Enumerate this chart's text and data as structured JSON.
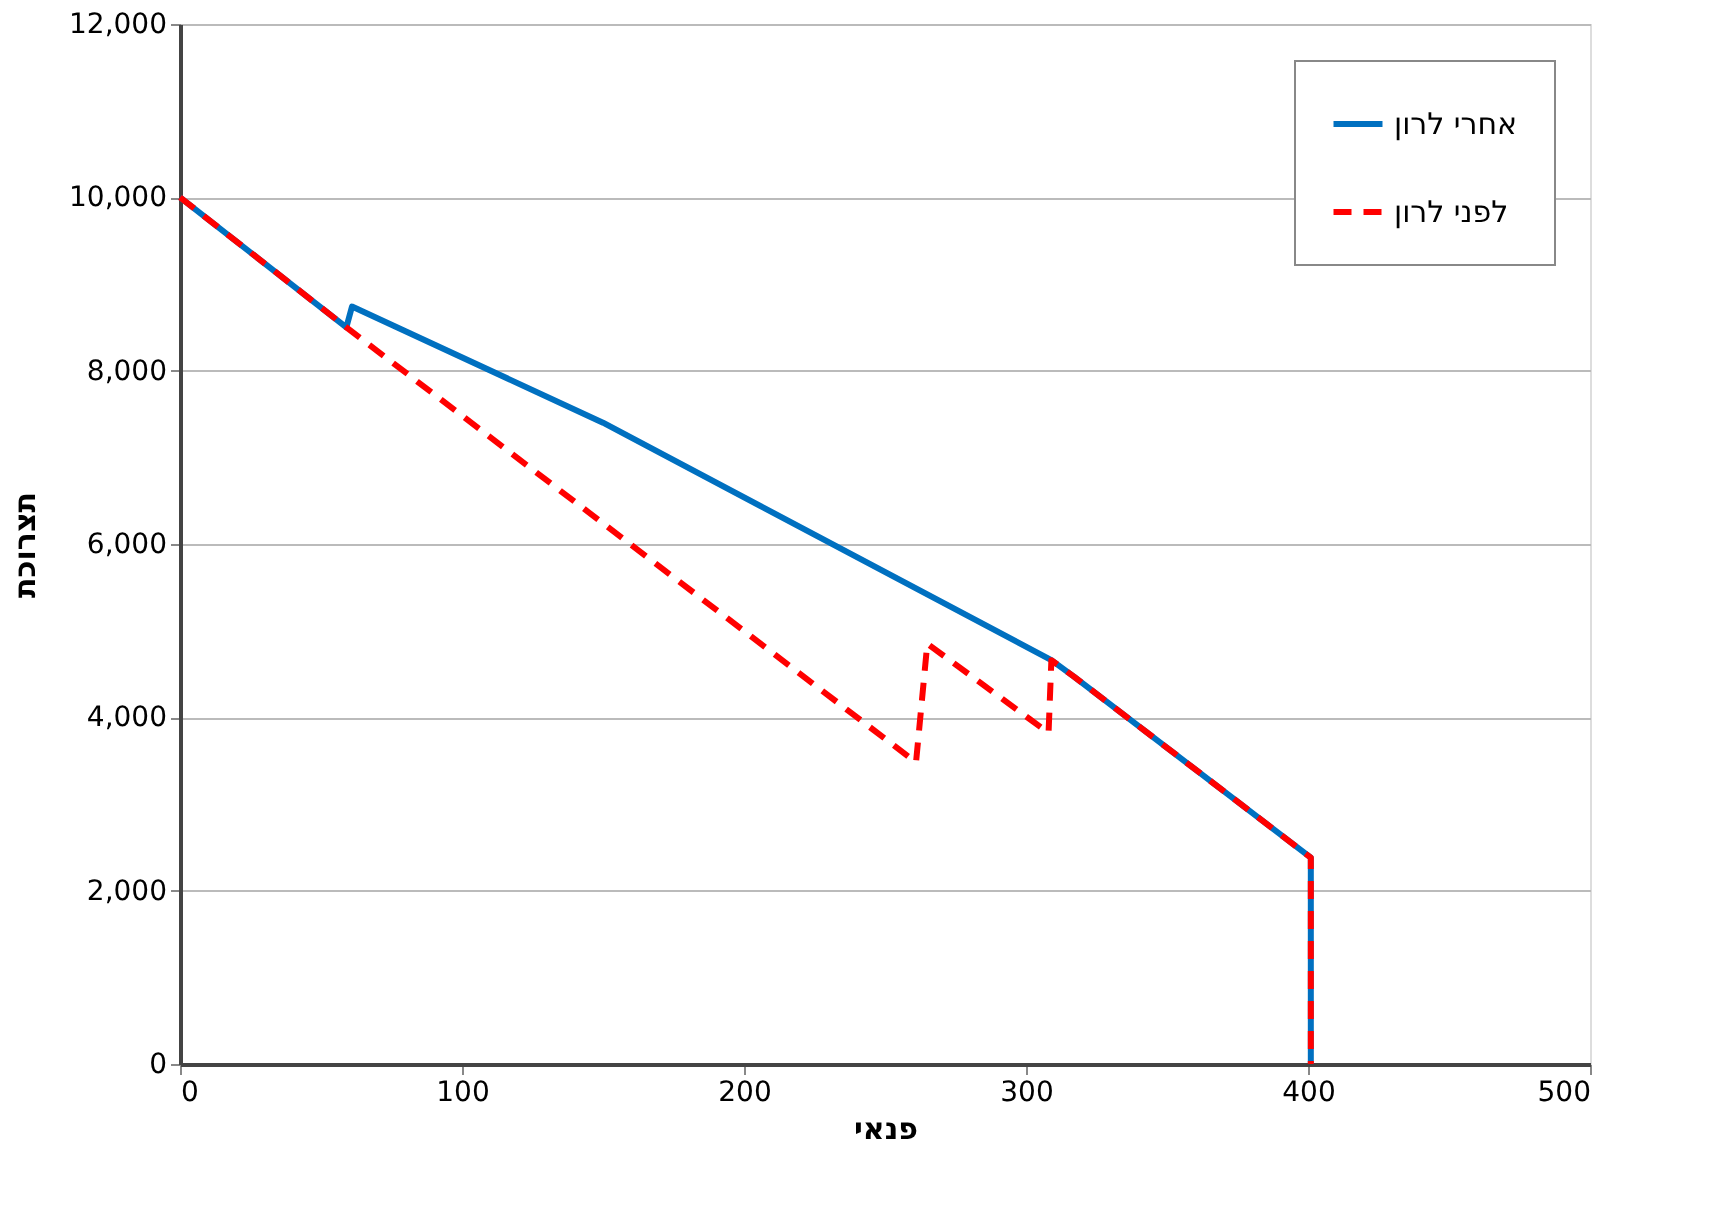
{
  "chart_data": {
    "type": "line",
    "xlabel": "פנאי",
    "ylabel": "תצרוכת",
    "xlim": [
      0,
      500
    ],
    "xticks": [
      0,
      100,
      200,
      300,
      400,
      500
    ],
    "ylim": [
      0,
      12000
    ],
    "yticks": [
      {
        "value": 0,
        "label": "0"
      },
      {
        "value": 2000,
        "label": "2,000"
      },
      {
        "value": 4000,
        "label": "4,000"
      },
      {
        "value": 6000,
        "label": "6,000"
      },
      {
        "value": 8000,
        "label": "8,000"
      },
      {
        "value": 10000,
        "label": "10,000"
      },
      {
        "value": 12000,
        "label": "12,000"
      }
    ],
    "grid": "y",
    "legend": "top right",
    "marker": "none",
    "series": [
      {
        "name": "אחרי לרון",
        "color": "#0070c0",
        "line_style": "solid",
        "x": [
          0,
          59,
          61,
          150,
          309,
          317,
          401,
          401
        ],
        "values": [
          10000,
          8500,
          8740,
          7400,
          4660,
          4470,
          2380,
          0
        ]
      },
      {
        "name": "לפני לרון",
        "color": "#ff0000",
        "line_style": "dashed",
        "x": [
          0,
          59,
          261,
          265,
          308,
          309,
          317,
          401,
          401
        ],
        "values": [
          10000,
          8500,
          3480,
          4850,
          3820,
          4660,
          4470,
          2380,
          0
        ]
      }
    ]
  }
}
